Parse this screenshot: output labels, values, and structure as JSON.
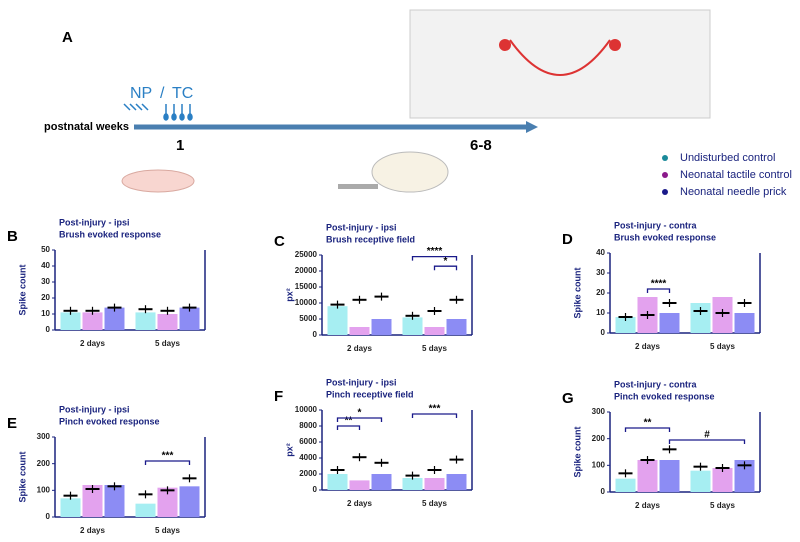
{
  "panel_a": {
    "letter": "A",
    "np": "NP",
    "slash": "/",
    "tc": "TC",
    "axis_label": "postnatal weeks",
    "week_start": "1",
    "week_end": "6-8"
  },
  "legend": {
    "entries": [
      {
        "name": "Undisturbed control",
        "color": "#1a8a9a",
        "bar_color": "#a6eef2"
      },
      {
        "name": "Neonatal tactile control",
        "color": "#8b1a8b",
        "bar_color": "#e3a2ee"
      },
      {
        "name": "Neonatal needle prick",
        "color": "#1a1a8a",
        "bar_color": "#8c8cf4"
      }
    ]
  },
  "chart_data": [
    {
      "type": "bar",
      "letter": "B",
      "title": "Post-injury  - ipsi",
      "subtitle": "Brush evoked response",
      "ylabel": "Spike count",
      "categories": [
        "2 days",
        "5 days"
      ],
      "ylim": [
        0,
        50
      ],
      "yticks": [
        0,
        10,
        20,
        30,
        40,
        50
      ],
      "series": [
        {
          "values": [
            11,
            11
          ],
          "means": [
            12,
            13
          ]
        },
        {
          "values": [
            11,
            10
          ],
          "means": [
            12,
            12
          ]
        },
        {
          "values": [
            14,
            14
          ],
          "means": [
            14,
            14
          ]
        }
      ],
      "annotations": []
    },
    {
      "type": "bar",
      "letter": "C",
      "title": "Post-injury - ipsi",
      "subtitle": "Brush receptive field",
      "ylabel": "px²",
      "categories": [
        "2 days",
        "5 days"
      ],
      "ylim": [
        0,
        25000
      ],
      "yticks": [
        0,
        5000,
        10000,
        15000,
        20000,
        25000
      ],
      "series": [
        {
          "values": [
            9000,
            5500
          ],
          "means": [
            9500,
            6000
          ]
        },
        {
          "values": [
            2500,
            2500
          ],
          "means": [
            11000,
            7500
          ]
        },
        {
          "values": [
            5000,
            5000
          ],
          "means": [
            12000,
            11000
          ]
        }
      ],
      "annotations": [
        "****",
        "*"
      ]
    },
    {
      "type": "bar",
      "letter": "D",
      "title": "Post-injury - contra",
      "subtitle": "Brush evoked response",
      "ylabel": "Spike count",
      "categories": [
        "2 days",
        "5 days"
      ],
      "ylim": [
        0,
        40
      ],
      "yticks": [
        0,
        10,
        20,
        30,
        40
      ],
      "series": [
        {
          "values": [
            8,
            15
          ],
          "means": [
            8,
            11
          ]
        },
        {
          "values": [
            18,
            18
          ],
          "means": [
            9,
            10
          ]
        },
        {
          "values": [
            10,
            10
          ],
          "means": [
            15,
            15
          ]
        }
      ],
      "annotations": [
        "****"
      ]
    },
    {
      "type": "bar",
      "letter": "E",
      "title": "Post-injury - ipsi",
      "subtitle": "Pinch evoked response",
      "ylabel": "Spike count",
      "categories": [
        "2 days",
        "5 days"
      ],
      "ylim": [
        0,
        300
      ],
      "yticks": [
        0,
        100,
        200,
        300
      ],
      "series": [
        {
          "values": [
            70,
            50
          ],
          "means": [
            80,
            85
          ]
        },
        {
          "values": [
            120,
            110
          ],
          "means": [
            105,
            100
          ]
        },
        {
          "values": [
            120,
            115
          ],
          "means": [
            115,
            145
          ]
        }
      ],
      "annotations": [
        "***"
      ]
    },
    {
      "type": "bar",
      "letter": "F",
      "title": "Post-injury - ipsi",
      "subtitle": "Pinch receptive field",
      "ylabel": "px²",
      "categories": [
        "2 days",
        "5 days"
      ],
      "ylim": [
        0,
        10000
      ],
      "yticks": [
        0,
        2000,
        4000,
        6000,
        8000,
        10000
      ],
      "series": [
        {
          "values": [
            2000,
            1500
          ],
          "means": [
            2500,
            1800
          ]
        },
        {
          "values": [
            1200,
            1500
          ],
          "means": [
            4100,
            2500
          ]
        },
        {
          "values": [
            2000,
            2000
          ],
          "means": [
            3400,
            3800
          ]
        }
      ],
      "annotations": [
        "**",
        "*",
        "***"
      ]
    },
    {
      "type": "bar",
      "letter": "G",
      "title": "Post-injury - contra",
      "subtitle": "Pinch evoked response",
      "ylabel": "Spike count",
      "categories": [
        "2 days",
        "5 days"
      ],
      "ylim": [
        0,
        300
      ],
      "yticks": [
        0,
        100,
        200,
        300
      ],
      "series": [
        {
          "values": [
            50,
            80
          ],
          "means": [
            70,
            95
          ]
        },
        {
          "values": [
            120,
            90
          ],
          "means": [
            120,
            90
          ]
        },
        {
          "values": [
            120,
            120
          ],
          "means": [
            160,
            100
          ]
        }
      ],
      "annotations": [
        "**",
        "#"
      ]
    }
  ]
}
